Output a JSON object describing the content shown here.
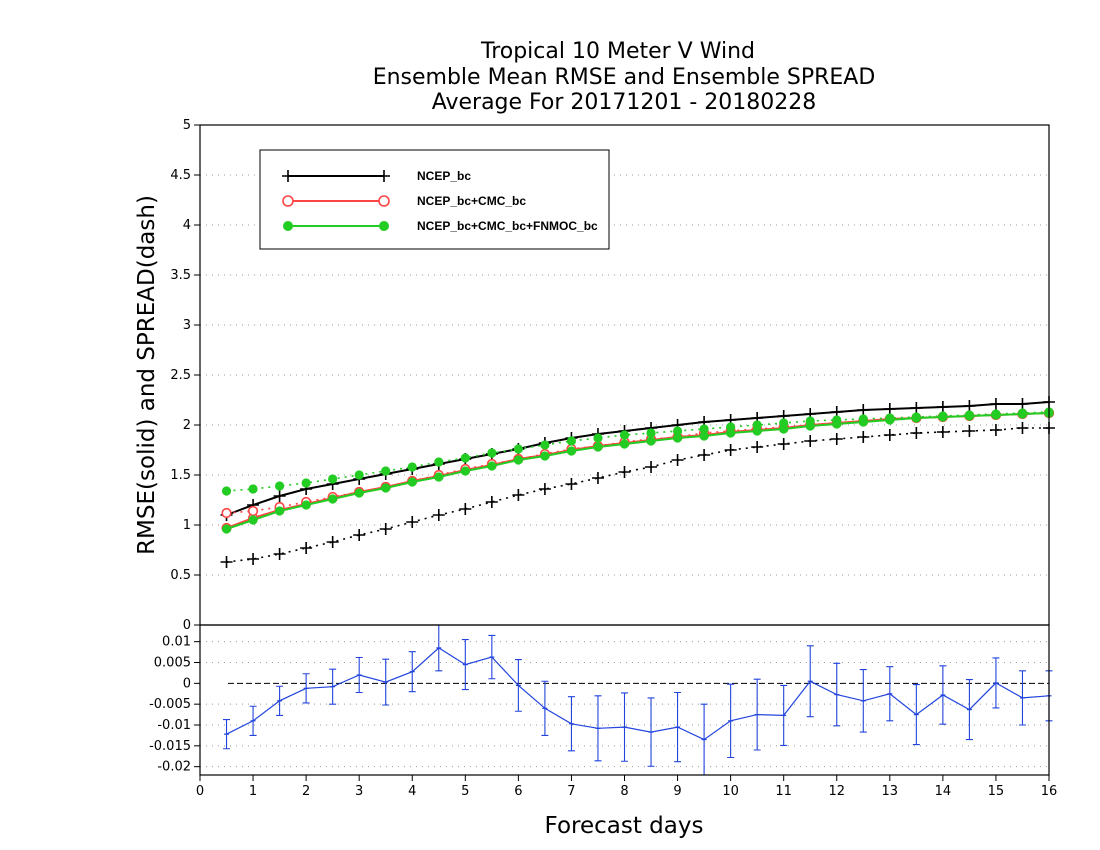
{
  "chart_data": [
    {
      "type": "line",
      "title": "Tropical 10 Meter V Wind",
      "subtitle": "Ensemble Mean RMSE and Ensemble SPREAD",
      "subtitle2": "Average For 20171201 - 20180228",
      "ylabel": "RMSE(solid)  and  SPREAD(dash)",
      "xlim": [
        0,
        16
      ],
      "ylim": [
        0,
        5
      ],
      "yticks": [
        "0",
        "0.5",
        "1",
        "1.5",
        "2",
        "2.5",
        "3",
        "3.5",
        "4",
        "4.5",
        "5"
      ],
      "grid": true,
      "legend_position": "top-left",
      "x": [
        0.5,
        1,
        1.5,
        2,
        2.5,
        3,
        3.5,
        4,
        4.5,
        5,
        5.5,
        6,
        6.5,
        7,
        7.5,
        8,
        8.5,
        9,
        9.5,
        10,
        10.5,
        11,
        11.5,
        12,
        12.5,
        13,
        13.5,
        14,
        14.5,
        15,
        15.5,
        16
      ],
      "series": [
        {
          "name": "NCEP_bc",
          "color": "#000000",
          "marker": "plus",
          "style": "solid",
          "values": [
            1.1,
            1.2,
            1.29,
            1.36,
            1.41,
            1.46,
            1.51,
            1.56,
            1.61,
            1.66,
            1.71,
            1.76,
            1.82,
            1.87,
            1.91,
            1.94,
            1.97,
            2.0,
            2.03,
            2.05,
            2.07,
            2.09,
            2.11,
            2.13,
            2.15,
            2.16,
            2.17,
            2.18,
            2.19,
            2.21,
            2.21,
            2.23
          ]
        },
        {
          "name": "NCEP_bc",
          "color": "#000000",
          "marker": "plus",
          "style": "dotted",
          "values": [
            0.63,
            0.66,
            0.71,
            0.77,
            0.83,
            0.9,
            0.96,
            1.03,
            1.1,
            1.16,
            1.23,
            1.3,
            1.36,
            1.41,
            1.47,
            1.53,
            1.58,
            1.65,
            1.7,
            1.75,
            1.78,
            1.81,
            1.84,
            1.86,
            1.88,
            1.9,
            1.92,
            1.93,
            1.94,
            1.95,
            1.97,
            1.97
          ]
        },
        {
          "name": "NCEP_bc+CMC_bc",
          "color": "#ff4444",
          "marker": "open-circle",
          "style": "solid",
          "values": [
            0.97,
            1.07,
            1.15,
            1.21,
            1.27,
            1.33,
            1.38,
            1.44,
            1.49,
            1.55,
            1.6,
            1.66,
            1.7,
            1.75,
            1.79,
            1.82,
            1.85,
            1.88,
            1.9,
            1.93,
            1.95,
            1.97,
            2.0,
            2.02,
            2.04,
            2.06,
            2.07,
            2.08,
            2.09,
            2.1,
            2.11,
            2.12
          ]
        },
        {
          "name": "NCEP_bc+CMC_bc",
          "color": "#ff4444",
          "marker": "open-circle",
          "style": "dotted",
          "values": [
            1.12,
            1.14,
            1.18,
            1.23,
            1.28,
            1.33,
            1.38,
            1.44,
            1.5,
            1.56,
            1.61,
            1.66,
            1.71,
            1.76,
            1.79,
            1.83,
            1.86,
            1.88,
            1.92,
            1.94,
            1.96,
            1.98,
            2.0,
            2.02,
            2.04,
            2.06,
            2.07,
            2.08,
            2.09,
            2.1,
            2.11,
            2.12
          ]
        },
        {
          "name": "NCEP_bc+CMC_bc+FNMOC_bc",
          "color": "#22cc22",
          "marker": "filled-circle",
          "style": "solid",
          "values": [
            0.96,
            1.05,
            1.14,
            1.2,
            1.26,
            1.32,
            1.37,
            1.43,
            1.48,
            1.54,
            1.59,
            1.65,
            1.69,
            1.74,
            1.78,
            1.81,
            1.84,
            1.87,
            1.89,
            1.92,
            1.94,
            1.96,
            1.99,
            2.01,
            2.03,
            2.05,
            2.07,
            2.08,
            2.09,
            2.1,
            2.11,
            2.12
          ]
        },
        {
          "name": "NCEP_bc+CMC_bc+FNMOC_bc",
          "color": "#22cc22",
          "marker": "filled-circle",
          "style": "dotted",
          "values": [
            1.34,
            1.36,
            1.39,
            1.42,
            1.46,
            1.5,
            1.54,
            1.58,
            1.63,
            1.67,
            1.72,
            1.76,
            1.8,
            1.84,
            1.87,
            1.9,
            1.92,
            1.94,
            1.96,
            1.98,
            2.0,
            2.02,
            2.04,
            2.05,
            2.06,
            2.07,
            2.08,
            2.09,
            2.1,
            2.11,
            2.12,
            2.13
          ]
        }
      ]
    },
    {
      "type": "line",
      "xlabel": "Forecast days",
      "xlim": [
        0,
        16
      ],
      "xticks": [
        "0",
        "1",
        "2",
        "3",
        "4",
        "5",
        "6",
        "7",
        "8",
        "9",
        "10",
        "11",
        "12",
        "13",
        "14",
        "15",
        "16"
      ],
      "ylim": [
        -0.022,
        0.014
      ],
      "yticks": [
        "-0.02",
        "-0.015",
        "-0.01",
        "-0.005",
        "0",
        "0.005",
        "0.01"
      ],
      "top_label": "0",
      "grid": true,
      "x": [
        0.5,
        1,
        1.5,
        2,
        2.5,
        3,
        3.5,
        4,
        4.5,
        5,
        5.5,
        6,
        6.5,
        7,
        7.5,
        8,
        8.5,
        9,
        9.5,
        10,
        10.5,
        11,
        11.5,
        12,
        12.5,
        13,
        13.5,
        14,
        14.5,
        15,
        15.5,
        16
      ],
      "series": [
        {
          "color": "#2244dd",
          "style": "solid",
          "error_bars": true,
          "values": [
            -0.0122,
            -0.009,
            -0.0042,
            -0.0012,
            -0.0008,
            0.002,
            0.0003,
            0.0028,
            0.0085,
            0.0045,
            0.0063,
            -0.0005,
            -0.006,
            -0.0097,
            -0.0108,
            -0.0105,
            -0.0117,
            -0.0105,
            -0.0135,
            -0.009,
            -0.0075,
            -0.0077,
            0.0005,
            -0.0027,
            -0.0042,
            -0.0025,
            -0.0075,
            -0.0028,
            -0.0063,
            0.0001,
            -0.0035,
            -0.003
          ],
          "errors": [
            0.0035,
            0.0035,
            0.0035,
            0.0035,
            0.0042,
            0.0042,
            0.0055,
            0.0048,
            0.0055,
            0.006,
            0.0052,
            0.0062,
            0.0065,
            0.0065,
            0.0078,
            0.0082,
            0.0082,
            0.0083,
            0.0085,
            0.0088,
            0.0085,
            0.0072,
            0.0085,
            0.0075,
            0.0075,
            0.0065,
            0.0072,
            0.007,
            0.0072,
            0.006,
            0.0065,
            0.006
          ]
        }
      ]
    }
  ]
}
